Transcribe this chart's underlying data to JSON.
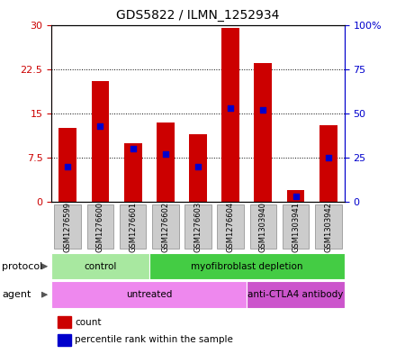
{
  "title": "GDS5822 / ILMN_1252934",
  "samples": [
    "GSM1276599",
    "GSM1276600",
    "GSM1276601",
    "GSM1276602",
    "GSM1276603",
    "GSM1276604",
    "GSM1303940",
    "GSM1303941",
    "GSM1303942"
  ],
  "count_values": [
    12.5,
    20.5,
    10.0,
    13.5,
    11.5,
    29.5,
    23.5,
    2.0,
    13.0
  ],
  "percentile_values": [
    20,
    43,
    30,
    27,
    20,
    53,
    52,
    3,
    25
  ],
  "ylim_left": [
    0,
    30
  ],
  "ylim_right": [
    0,
    100
  ],
  "yticks_left": [
    0,
    7.5,
    15,
    22.5,
    30
  ],
  "yticks_right": [
    0,
    25,
    50,
    75,
    100
  ],
  "ytick_labels_left": [
    "0",
    "7.5",
    "15",
    "22.5",
    "30"
  ],
  "ytick_labels_right": [
    "0",
    "25",
    "50",
    "75",
    "100%"
  ],
  "bar_color": "#cc0000",
  "dot_color": "#0000cc",
  "bar_width": 0.55,
  "grid_color": "black",
  "protocol_groups": [
    {
      "label": "control",
      "start": 0,
      "end": 3,
      "color": "#a8e8a0"
    },
    {
      "label": "myofibroblast depletion",
      "start": 3,
      "end": 9,
      "color": "#44cc44"
    }
  ],
  "agent_groups": [
    {
      "label": "untreated",
      "start": 0,
      "end": 6,
      "color": "#ee88ee"
    },
    {
      "label": "anti-CTLA4 antibody",
      "start": 6,
      "end": 9,
      "color": "#cc55cc"
    }
  ],
  "legend_count_label": "count",
  "legend_percentile_label": "percentile rank within the sample",
  "protocol_label": "protocol",
  "agent_label": "agent",
  "left_axis_color": "#cc0000",
  "right_axis_color": "#0000cc",
  "sample_bg_color": "#cccccc",
  "plot_bg_color": "#ffffff"
}
